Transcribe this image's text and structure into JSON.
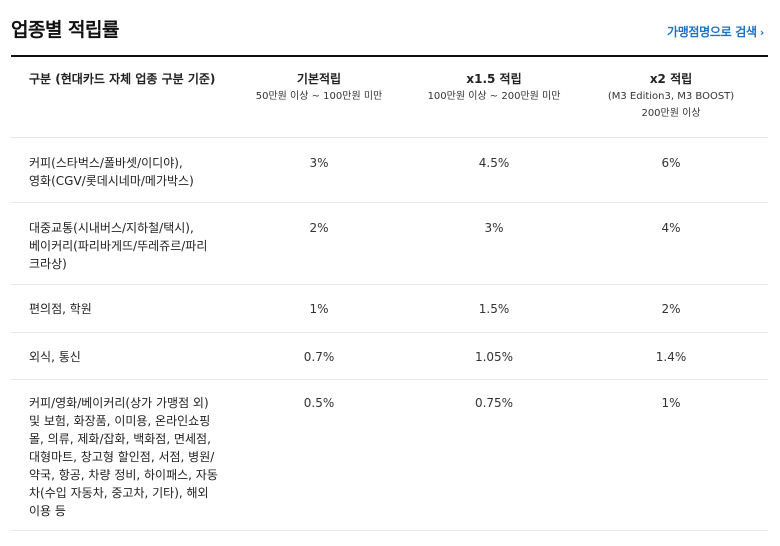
{
  "header": {
    "title": "업종별 적립률",
    "search_link": "가맹점명으로 검색",
    "search_chevron": "›"
  },
  "table": {
    "columns": [
      {
        "name": "구분 (현대카드 자체 업종 구분 기준)"
      },
      {
        "name": "기본적립",
        "sub": [
          "50만원 이상 ~ 100만원 미만"
        ]
      },
      {
        "name": "x1.5 적립",
        "sub": [
          "100만원 이상 ~ 200만원 미만"
        ]
      },
      {
        "name": "x2 적립",
        "sub": [
          "(M3 Edition3, M3 BOOST)",
          "200만원 이상"
        ]
      }
    ],
    "rows": [
      {
        "category": [
          "커피(스타벅스/폴바셋/이디야),",
          "영화(CGV/롯데시네마/메가박스)"
        ],
        "base": "3%",
        "x15": "4.5%",
        "x2": "6%"
      },
      {
        "category": [
          "대중교통(시내버스/지하철/택시),",
          "베이커리(파리바게뜨/뚜레쥬르/파리",
          "크라상)"
        ],
        "base": "2%",
        "x15": "3%",
        "x2": "4%"
      },
      {
        "category": [
          "편의점, 학원"
        ],
        "base": "1%",
        "x15": "1.5%",
        "x2": "2%"
      },
      {
        "category": [
          "외식, 통신"
        ],
        "base": "0.7%",
        "x15": "1.05%",
        "x2": "1.4%"
      },
      {
        "category": [
          "커피/영화/베이커리(상가 가맹점 외)",
          "및 보험, 화장품, 이미용, 온라인쇼핑",
          "몰, 의류, 제화/잡화, 백화점, 면세점,",
          "대형마트, 창고형 할인점, 서점, 병원/",
          "약국, 항공, 차량 정비, 하이패스, 자동",
          "차(수입 자동차, 중고차, 기타), 해외",
          "이용 등"
        ],
        "base": "0.5%",
        "x15": "0.75%",
        "x2": "1%"
      }
    ]
  }
}
